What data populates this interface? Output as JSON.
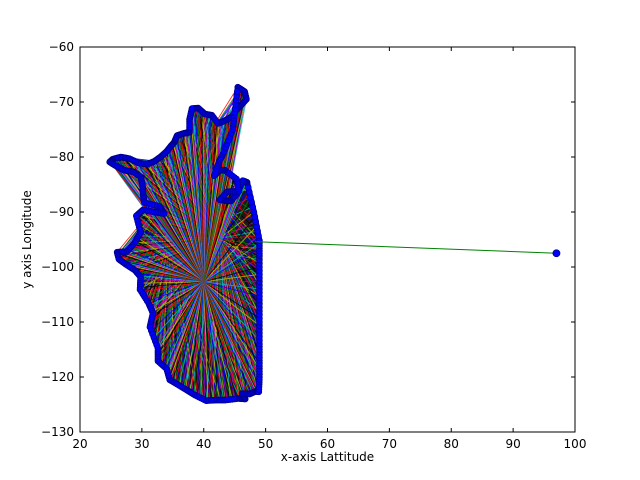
{
  "chart_data": {
    "type": "scatter",
    "title": "",
    "xlabel": "x-axis Lattitude",
    "ylabel": "y axis Longitude",
    "xlim": [
      20,
      100
    ],
    "ylim": [
      -130,
      -60
    ],
    "xticks": [
      20,
      30,
      40,
      50,
      60,
      70,
      80,
      90,
      100
    ],
    "yticks": [
      -130,
      -120,
      -110,
      -100,
      -90,
      -80,
      -70,
      -60
    ],
    "grid": false,
    "legend": "none",
    "series": [
      {
        "marker_color": "#0000ff",
        "boundary_points": [
          [
            45.5,
            -67.3
          ],
          [
            46.6,
            -68.1
          ],
          [
            46.9,
            -69.5
          ],
          [
            46.0,
            -70.6
          ],
          [
            45.3,
            -71.4
          ],
          [
            44.5,
            -72.7
          ],
          [
            43.4,
            -73.4
          ],
          [
            42.3,
            -73.9
          ],
          [
            41.3,
            -72.4
          ],
          [
            40.2,
            -72.2
          ],
          [
            39.1,
            -71.1
          ],
          [
            38.1,
            -71.2
          ],
          [
            37.7,
            -73.2
          ],
          [
            37.7,
            -75.5
          ],
          [
            36.8,
            -75.7
          ],
          [
            35.7,
            -76.1
          ],
          [
            35.2,
            -77.4
          ],
          [
            34.7,
            -78.0
          ],
          [
            34.0,
            -79.0
          ],
          [
            33.0,
            -80.0
          ],
          [
            32.0,
            -80.8
          ],
          [
            30.9,
            -81.3
          ],
          [
            29.5,
            -81.1
          ],
          [
            28.0,
            -80.3
          ],
          [
            26.6,
            -80.0
          ],
          [
            25.3,
            -80.4
          ],
          [
            24.8,
            -80.9
          ],
          [
            25.8,
            -81.6
          ],
          [
            27.1,
            -82.4
          ],
          [
            28.6,
            -82.7
          ],
          [
            29.8,
            -83.6
          ],
          [
            30.1,
            -85.0
          ],
          [
            30.2,
            -86.8
          ],
          [
            30.4,
            -88.3
          ],
          [
            32.9,
            -89.0
          ],
          [
            33.6,
            -90.3
          ],
          [
            32.0,
            -90.0
          ],
          [
            30.2,
            -89.6
          ],
          [
            29.1,
            -90.7
          ],
          [
            29.8,
            -93.7
          ],
          [
            28.8,
            -95.6
          ],
          [
            27.6,
            -97.2
          ],
          [
            26.0,
            -97.3
          ],
          [
            26.3,
            -98.6
          ],
          [
            27.4,
            -99.5
          ],
          [
            28.9,
            -100.6
          ],
          [
            29.8,
            -101.8
          ],
          [
            29.7,
            -104.1
          ],
          [
            31.1,
            -106.6
          ],
          [
            31.8,
            -108.4
          ],
          [
            31.3,
            -110.9
          ],
          [
            32.6,
            -114.8
          ],
          [
            32.6,
            -117.1
          ],
          [
            34.0,
            -118.5
          ],
          [
            34.5,
            -120.5
          ],
          [
            35.7,
            -121.3
          ],
          [
            37.3,
            -122.4
          ],
          [
            38.6,
            -123.3
          ],
          [
            40.4,
            -124.3
          ],
          [
            42.0,
            -124.2
          ],
          [
            43.5,
            -124.2
          ],
          [
            45.7,
            -123.9
          ],
          [
            46.7,
            -124.0
          ],
          [
            46.2,
            -123.0
          ],
          [
            47.4,
            -123.1
          ],
          [
            48.4,
            -122.6
          ],
          [
            48.9,
            -122.7
          ],
          [
            49.0,
            -120.0
          ],
          [
            49.0,
            -117.0
          ],
          [
            49.0,
            -114.0
          ],
          [
            49.0,
            -110.0
          ],
          [
            49.0,
            -106.0
          ],
          [
            49.0,
            -102.0
          ],
          [
            49.0,
            -98.0
          ],
          [
            49.0,
            -95.2
          ],
          [
            48.1,
            -90.0
          ],
          [
            47.0,
            -84.6
          ],
          [
            46.3,
            -84.3
          ],
          [
            45.4,
            -86.6
          ],
          [
            44.4,
            -88.0
          ],
          [
            43.5,
            -87.9
          ],
          [
            42.6,
            -87.8
          ],
          [
            43.8,
            -86.3
          ],
          [
            45.7,
            -86.2
          ],
          [
            45.3,
            -84.0
          ],
          [
            43.4,
            -82.4
          ],
          [
            42.6,
            -82.4
          ],
          [
            41.7,
            -83.4
          ],
          [
            42.5,
            -80.8
          ],
          [
            43.3,
            -79.0
          ],
          [
            44.7,
            -75.0
          ],
          [
            45.0,
            -72.0
          ]
        ]
      },
      {
        "hub_points": [
          [
            37.6,
            -81.5
          ],
          [
            34.4,
            -95.6
          ],
          [
            42.6,
            -94.8
          ],
          [
            40.0,
            -102.7
          ]
        ],
        "hub_line_colors": [
          "#ff0000",
          "#008000",
          "#0000ff",
          "#00bfbf",
          "#bf00bf",
          "#bfbf00",
          "#000000"
        ]
      },
      {
        "line_color": "#008000",
        "points": [
          [
            48.5,
            -95.4
          ],
          [
            97.0,
            -97.5
          ]
        ]
      }
    ]
  }
}
